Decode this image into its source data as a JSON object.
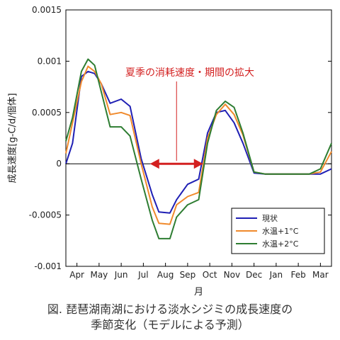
{
  "chart_data": {
    "type": "line",
    "title": "",
    "xlabel": "月",
    "ylabel": "成長速度[g-C/d/個体]",
    "xlim": [
      0,
      12
    ],
    "ylim": [
      -0.001,
      0.0015
    ],
    "y_ticks": [
      "0.0015",
      "0.001",
      "0.0005",
      "0",
      "-0.0005",
      "-0.001"
    ],
    "y_tick_values": [
      0.0015,
      0.001,
      0.0005,
      0,
      -0.0005,
      -0.001
    ],
    "x_ticks": [
      "Apr",
      "May",
      "Jun",
      "Jul",
      "Aug",
      "Sep",
      "Oct",
      "Nov",
      "Dec",
      "Jan",
      "Feb",
      "Mar"
    ],
    "x_tick_values": [
      0.5,
      1.5,
      2.5,
      3.5,
      4.5,
      5.5,
      6.5,
      7.5,
      8.5,
      9.5,
      10.5,
      11.5
    ],
    "legend_position": "lower-right",
    "grid": false,
    "series": [
      {
        "name": "現状",
        "color": "#1f1fb4",
        "x": [
          0,
          0.3,
          0.7,
          1.0,
          1.3,
          1.6,
          2.0,
          2.5,
          2.9,
          3.4,
          3.9,
          4.2,
          4.7,
          5.0,
          5.5,
          6.0,
          6.4,
          6.8,
          7.2,
          7.6,
          8.0,
          8.5,
          9.0,
          9.5,
          10.0,
          10.5,
          11.0,
          11.5,
          12.0
        ],
        "y": [
          0.0,
          0.0002,
          0.00085,
          0.0009,
          0.00088,
          0.00078,
          0.00059,
          0.00063,
          0.00056,
          5e-05,
          -0.0003,
          -0.00047,
          -0.00048,
          -0.00035,
          -0.0002,
          -0.00015,
          0.0003,
          0.0005,
          0.00052,
          0.0004,
          0.0002,
          -9e-05,
          -0.0001,
          -0.0001,
          -0.0001,
          -0.0001,
          -0.0001,
          -0.0001,
          -5e-05
        ]
      },
      {
        "name": "水温+1°C",
        "color": "#f08a2c",
        "x": [
          0,
          0.3,
          0.7,
          1.0,
          1.3,
          1.6,
          2.0,
          2.5,
          2.9,
          3.4,
          3.9,
          4.2,
          4.7,
          5.0,
          5.5,
          6.0,
          6.4,
          6.8,
          7.2,
          7.6,
          8.0,
          8.5,
          9.0,
          9.5,
          10.0,
          10.5,
          11.0,
          11.5,
          12.0
        ],
        "y": [
          0.0001,
          0.0004,
          0.0008,
          0.00095,
          0.0009,
          0.00078,
          0.00048,
          0.0005,
          0.00047,
          0.0,
          -0.00042,
          -0.00058,
          -0.00059,
          -0.0004,
          -0.00032,
          -0.00028,
          0.00025,
          0.00048,
          0.00058,
          0.00048,
          0.00028,
          -8e-05,
          -0.0001,
          -0.0001,
          -0.0001,
          -0.0001,
          -0.0001,
          -8e-05,
          0.00012
        ]
      },
      {
        "name": "水温+2°C",
        "color": "#2e7d32",
        "x": [
          0,
          0.3,
          0.7,
          1.0,
          1.3,
          1.6,
          2.0,
          2.5,
          2.9,
          3.4,
          3.9,
          4.2,
          4.7,
          5.0,
          5.5,
          6.0,
          6.4,
          6.8,
          7.2,
          7.6,
          8.0,
          8.5,
          9.0,
          9.5,
          10.0,
          10.5,
          11.0,
          11.5,
          12.0
        ],
        "y": [
          0.00022,
          0.00045,
          0.0009,
          0.00102,
          0.00096,
          0.0007,
          0.00036,
          0.00036,
          0.00027,
          -0.00015,
          -0.00055,
          -0.00073,
          -0.00073,
          -0.00052,
          -0.0004,
          -0.00035,
          0.0002,
          0.00052,
          0.00061,
          0.00055,
          0.0003,
          -8e-05,
          -0.0001,
          -0.0001,
          -0.0001,
          -0.0001,
          -0.0001,
          -5e-05,
          0.0002
        ]
      }
    ],
    "annotation": {
      "text": "夏季の消耗速度・期間の拡大",
      "color": "#d32020",
      "arrow_x": [
        3.8,
        6.2
      ],
      "arrow_y": 0,
      "pointer_x": 5.0
    }
  },
  "caption": {
    "line1": "図. 琵琶湖南湖における淡水シジミの成長速度の",
    "line2": "季節変化（モデルによる予測）"
  }
}
